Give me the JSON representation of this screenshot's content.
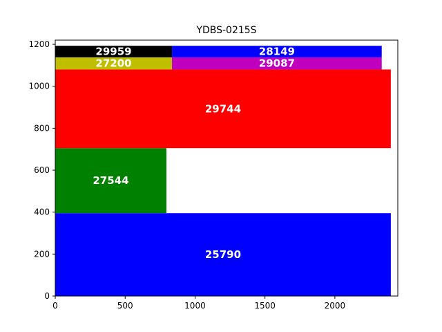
{
  "chart_data": {
    "type": "treemap",
    "title": "YDBS-0215S",
    "xlim": [
      0,
      2450
    ],
    "ylim": [
      0,
      1220
    ],
    "xticks": [
      0,
      500,
      1000,
      1500,
      2000
    ],
    "yticks": [
      0,
      200,
      400,
      600,
      800,
      1000,
      1200
    ],
    "rects": [
      {
        "label": "25790",
        "x": 0,
        "y": 0,
        "w": 2400,
        "h": 395,
        "color": "#0000ff"
      },
      {
        "label": "27544",
        "x": 0,
        "y": 395,
        "w": 795,
        "h": 310,
        "color": "#008000"
      },
      {
        "label": "29744",
        "x": 0,
        "y": 705,
        "w": 2400,
        "h": 375,
        "color": "#ff0000"
      },
      {
        "label": "27200",
        "x": 0,
        "y": 1080,
        "w": 835,
        "h": 58,
        "color": "#bfbf00"
      },
      {
        "label": "29087",
        "x": 835,
        "y": 1080,
        "w": 1500,
        "h": 58,
        "color": "#bf00bf"
      },
      {
        "label": "29959",
        "x": 0,
        "y": 1138,
        "w": 835,
        "h": 55,
        "color": "#000000"
      },
      {
        "label": "28149",
        "x": 835,
        "y": 1138,
        "w": 1500,
        "h": 55,
        "color": "#0000ff"
      }
    ]
  }
}
